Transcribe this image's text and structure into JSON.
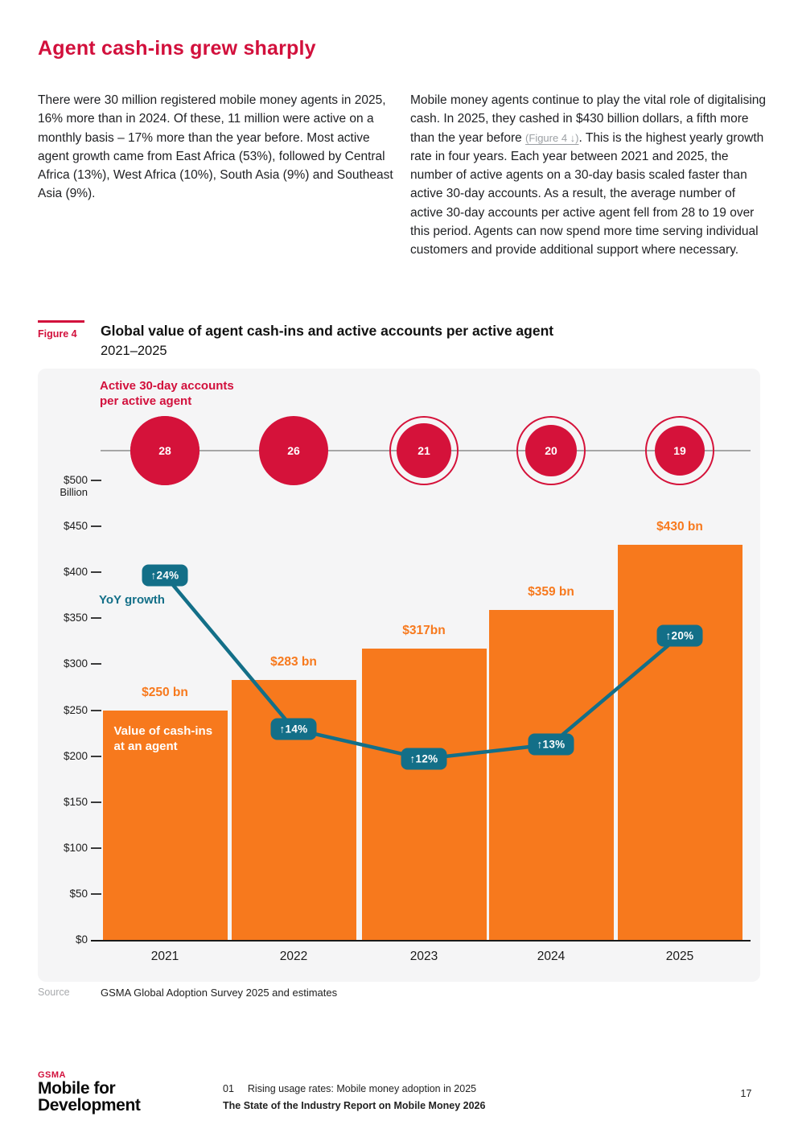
{
  "page": {
    "title": "Agent cash-ins grew sharply",
    "intro_left": "There were 30 million registered mobile money agents in 2025, 16% more than in 2024. Of these, 11 million were active on a monthly basis – 17% more than the year before. Most active agent growth came from East Africa (53%), followed by Central Africa (13%), West Africa (10%), South Asia (9%) and Southeast Asia (9%).",
    "intro_right_before": "Mobile money agents continue to play the vital role of digitalising cash. In 2025, they cashed in $430 billion dollars, a fifth more than the year before ",
    "intro_right_link": "(Figure 4 ↓)",
    "intro_right_after": ". This is the highest yearly growth rate in four years. Each year between 2021 and 2025, the number of active agents on a 30-day basis scaled faster than active 30-day accounts. As a result, the average number of active 30-day accounts per active agent fell from 28 to 19 over this period. Agents can now spend more time serving individual customers and provide additional support where necessary."
  },
  "figure": {
    "label": "Figure 4",
    "title": "Global value of agent cash-ins and active accounts per active agent",
    "subtitle": "2021–2025"
  },
  "chart_labels": {
    "accounts_line1": "Active 30-day accounts",
    "accounts_line2": "per active agent",
    "yoy": "YoY growth",
    "bar_line1": "Value of cash-ins",
    "bar_line2": "at an agent"
  },
  "chart_data": {
    "type": "bar",
    "title": "Global value of agent cash-ins and active accounts per active agent, 2021–2025",
    "categories": [
      "2021",
      "2022",
      "2023",
      "2024",
      "2025"
    ],
    "series": [
      {
        "name": "Value of cash-ins at an agent",
        "unit": "$ billion",
        "values": [
          250,
          283,
          317,
          359,
          430
        ],
        "labels": [
          "$250 bn",
          "$283 bn",
          "$317bn",
          "$359 bn",
          "$430 bn"
        ],
        "color": "#F7791D"
      },
      {
        "name": "YoY growth",
        "unit": "%",
        "values": [
          24,
          14,
          12,
          13,
          20
        ],
        "labels": [
          "↑24%",
          "↑14%",
          "↑12%",
          "↑13%",
          "↑20%"
        ],
        "color": "#136F88"
      },
      {
        "name": "Active 30-day accounts per active agent",
        "values": [
          28,
          26,
          21,
          20,
          19
        ],
        "color": "#D5123A"
      }
    ],
    "ylabel": "$ Billion",
    "ylim": [
      0,
      500
    ],
    "y_ticks": [
      500,
      450,
      400,
      350,
      300,
      250,
      200,
      150,
      100,
      50,
      0
    ],
    "y_tick_labels": [
      "$500",
      "$450",
      "$400",
      "$350",
      "$300",
      "$250",
      "$200",
      "$150",
      "$100",
      "$50",
      "$0"
    ],
    "y_unit_label": "Billion",
    "grid": false,
    "legend_position": "in-plot annotations"
  },
  "source": {
    "label": "Source",
    "text": "GSMA Global Adoption Survey 2025 and estimates"
  },
  "footer": {
    "logo_top": "GSMA",
    "logo_line1": "Mobile for",
    "logo_line2": "Development",
    "section_number": "01",
    "chapter": "Rising usage rates: Mobile money adoption in 2025",
    "report": "The State of the Industry Report on Mobile Money 2026",
    "page_number": "17"
  }
}
